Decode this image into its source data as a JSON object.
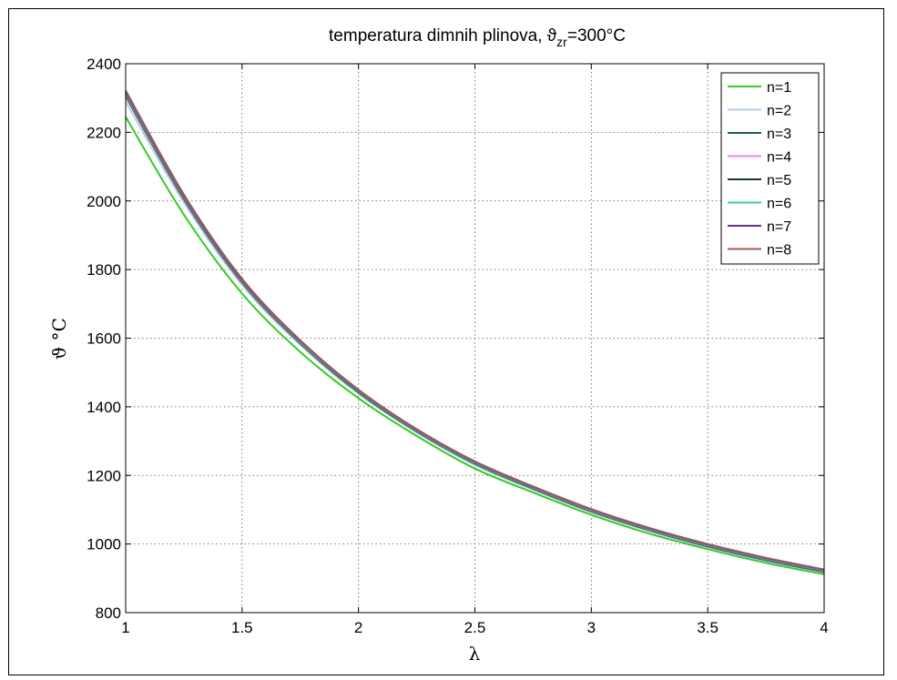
{
  "chart_data": {
    "type": "line",
    "title": "temperatura dimnih plinova, ϑ",
    "title_subscript": "zr",
    "title_suffix": "=300°C",
    "xlabel": "λ",
    "ylabel": "ϑ °C",
    "xlim": [
      1,
      4
    ],
    "ylim": [
      800,
      2400
    ],
    "xticks": [
      1,
      1.5,
      2,
      2.5,
      3,
      3.5,
      4
    ],
    "xtick_labels": [
      "1",
      "1.5",
      "2",
      "2.5",
      "3",
      "3.5",
      "4"
    ],
    "yticks": [
      800,
      1000,
      1200,
      1400,
      1600,
      1800,
      2000,
      2200,
      2400
    ],
    "ytick_labels": [
      "800",
      "1000",
      "1200",
      "1400",
      "1600",
      "1800",
      "2000",
      "2200",
      "2400"
    ],
    "grid": true,
    "legend_position": "top-right",
    "x": [
      1,
      1.25,
      1.5,
      1.75,
      2,
      2.25,
      2.5,
      2.75,
      3,
      3.25,
      3.5,
      3.75,
      4
    ],
    "series": [
      {
        "name": "n=1",
        "color": "#33cc22",
        "values": [
          2245,
          1960,
          1730,
          1560,
          1425,
          1315,
          1220,
          1150,
          1085,
          1030,
          985,
          945,
          912
        ]
      },
      {
        "name": "n=2",
        "color": "#b7cfe6",
        "values": [
          2290,
          1995,
          1755,
          1580,
          1438,
          1325,
          1230,
          1158,
          1092,
          1037,
          990,
          950,
          917
        ]
      },
      {
        "name": "n=3",
        "color": "#1f5c3a",
        "values": [
          2305,
          2005,
          1762,
          1585,
          1442,
          1328,
          1234,
          1161,
          1095,
          1040,
          993,
          953,
          919
        ]
      },
      {
        "name": "n=4",
        "color": "#d98ee6",
        "values": [
          2310,
          2010,
          1765,
          1588,
          1445,
          1330,
          1236,
          1163,
          1097,
          1042,
          995,
          955,
          921
        ]
      },
      {
        "name": "n=5",
        "color": "#203a20",
        "values": [
          2314,
          2013,
          1767,
          1590,
          1446,
          1331,
          1237,
          1164,
          1098,
          1043,
          996,
          956,
          922
        ]
      },
      {
        "name": "n=6",
        "color": "#40c8b0",
        "values": [
          2317,
          2015,
          1769,
          1591,
          1447,
          1332,
          1238,
          1165,
          1099,
          1044,
          997,
          957,
          923
        ]
      },
      {
        "name": "n=7",
        "color": "#6a2c8f",
        "values": [
          2320,
          2017,
          1771,
          1593,
          1449,
          1334,
          1240,
          1167,
          1101,
          1046,
          999,
          959,
          925
        ]
      },
      {
        "name": "n=8",
        "color": "#a0585a",
        "values": [
          2322,
          2019,
          1773,
          1594,
          1450,
          1335,
          1241,
          1168,
          1102,
          1047,
          1000,
          960,
          926
        ]
      }
    ]
  }
}
